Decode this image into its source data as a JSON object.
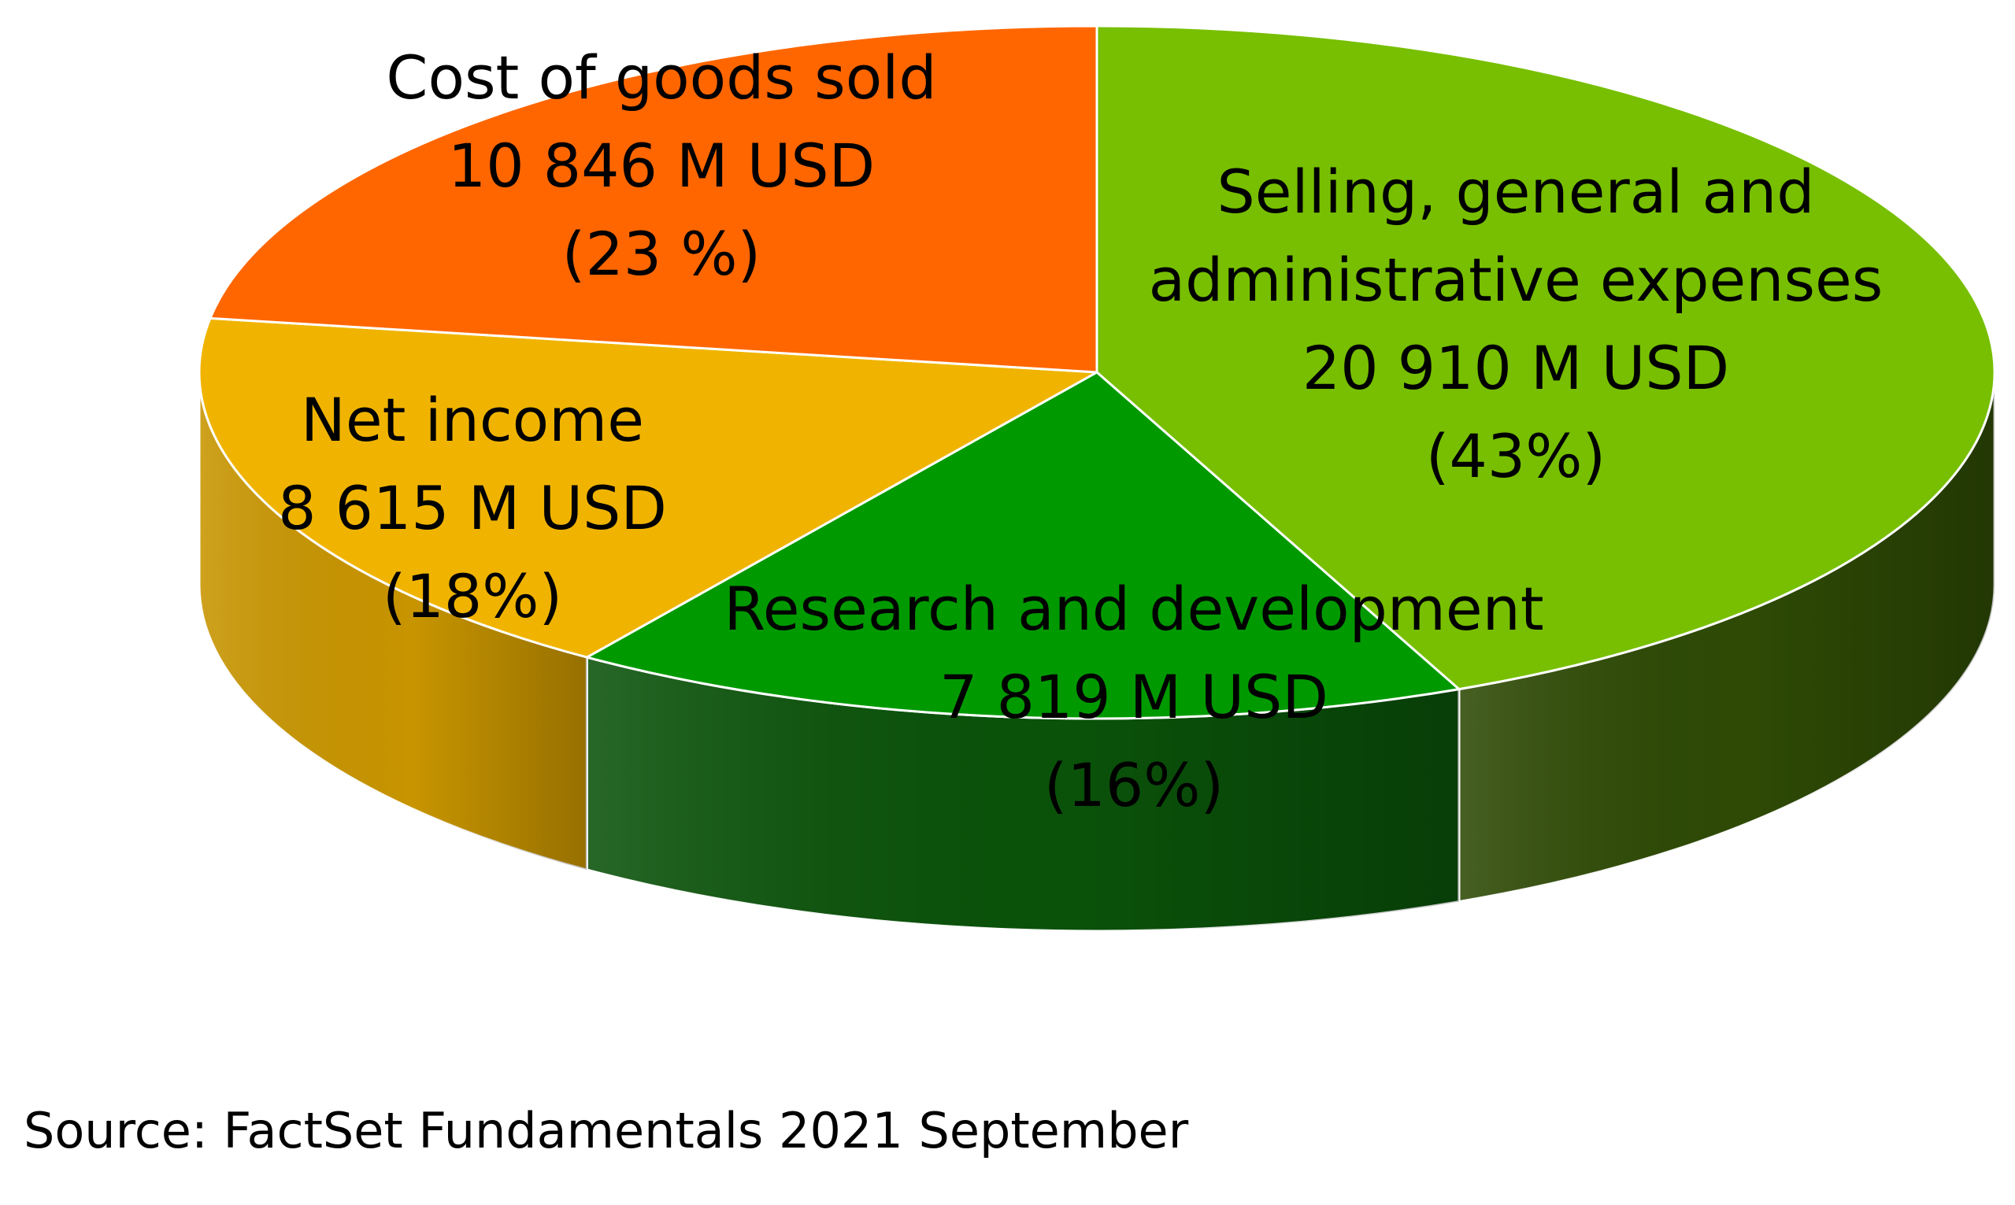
{
  "chart_data": {
    "type": "pie",
    "style": "3d",
    "slices": [
      {
        "name": "Selling, general and administrative expenses",
        "value": 20910,
        "value_text": "20 910 M USD",
        "percent": 43,
        "percent_text": "(43%)",
        "label_lines": [
          "Selling, general and",
          "administrative expenses",
          "20 910 M USD",
          "(43%)"
        ],
        "color": "#77bf00",
        "side_color": "#2e4a05"
      },
      {
        "name": "Research and development",
        "value": 7819,
        "value_text": "7 819 M USD",
        "percent": 16,
        "percent_text": "(16%)",
        "label_lines": [
          "Research and development",
          "7 819 M USD",
          "(16%)"
        ],
        "color": "#009900",
        "side_color": "#0a520a"
      },
      {
        "name": "Net income",
        "value": 8615,
        "value_text": "8 615 M USD",
        "percent": 18,
        "percent_text": "(18%)",
        "label_lines": [
          "Net income",
          "8 615 M USD",
          "(18%)"
        ],
        "color": "#f0b400",
        "side_color": "#c89500"
      },
      {
        "name": "Cost of goods sold",
        "value": 10846,
        "value_text": "10 846 M USD",
        "percent": 23,
        "percent_text": "(23 %)",
        "label_lines": [
          "Cost of goods sold",
          "10 846 M USD",
          "(23 %)"
        ],
        "color": "#ff6600",
        "side_color": "#b34700"
      }
    ]
  },
  "source_note": "Source: FactSet Fundamentals 2021 September"
}
